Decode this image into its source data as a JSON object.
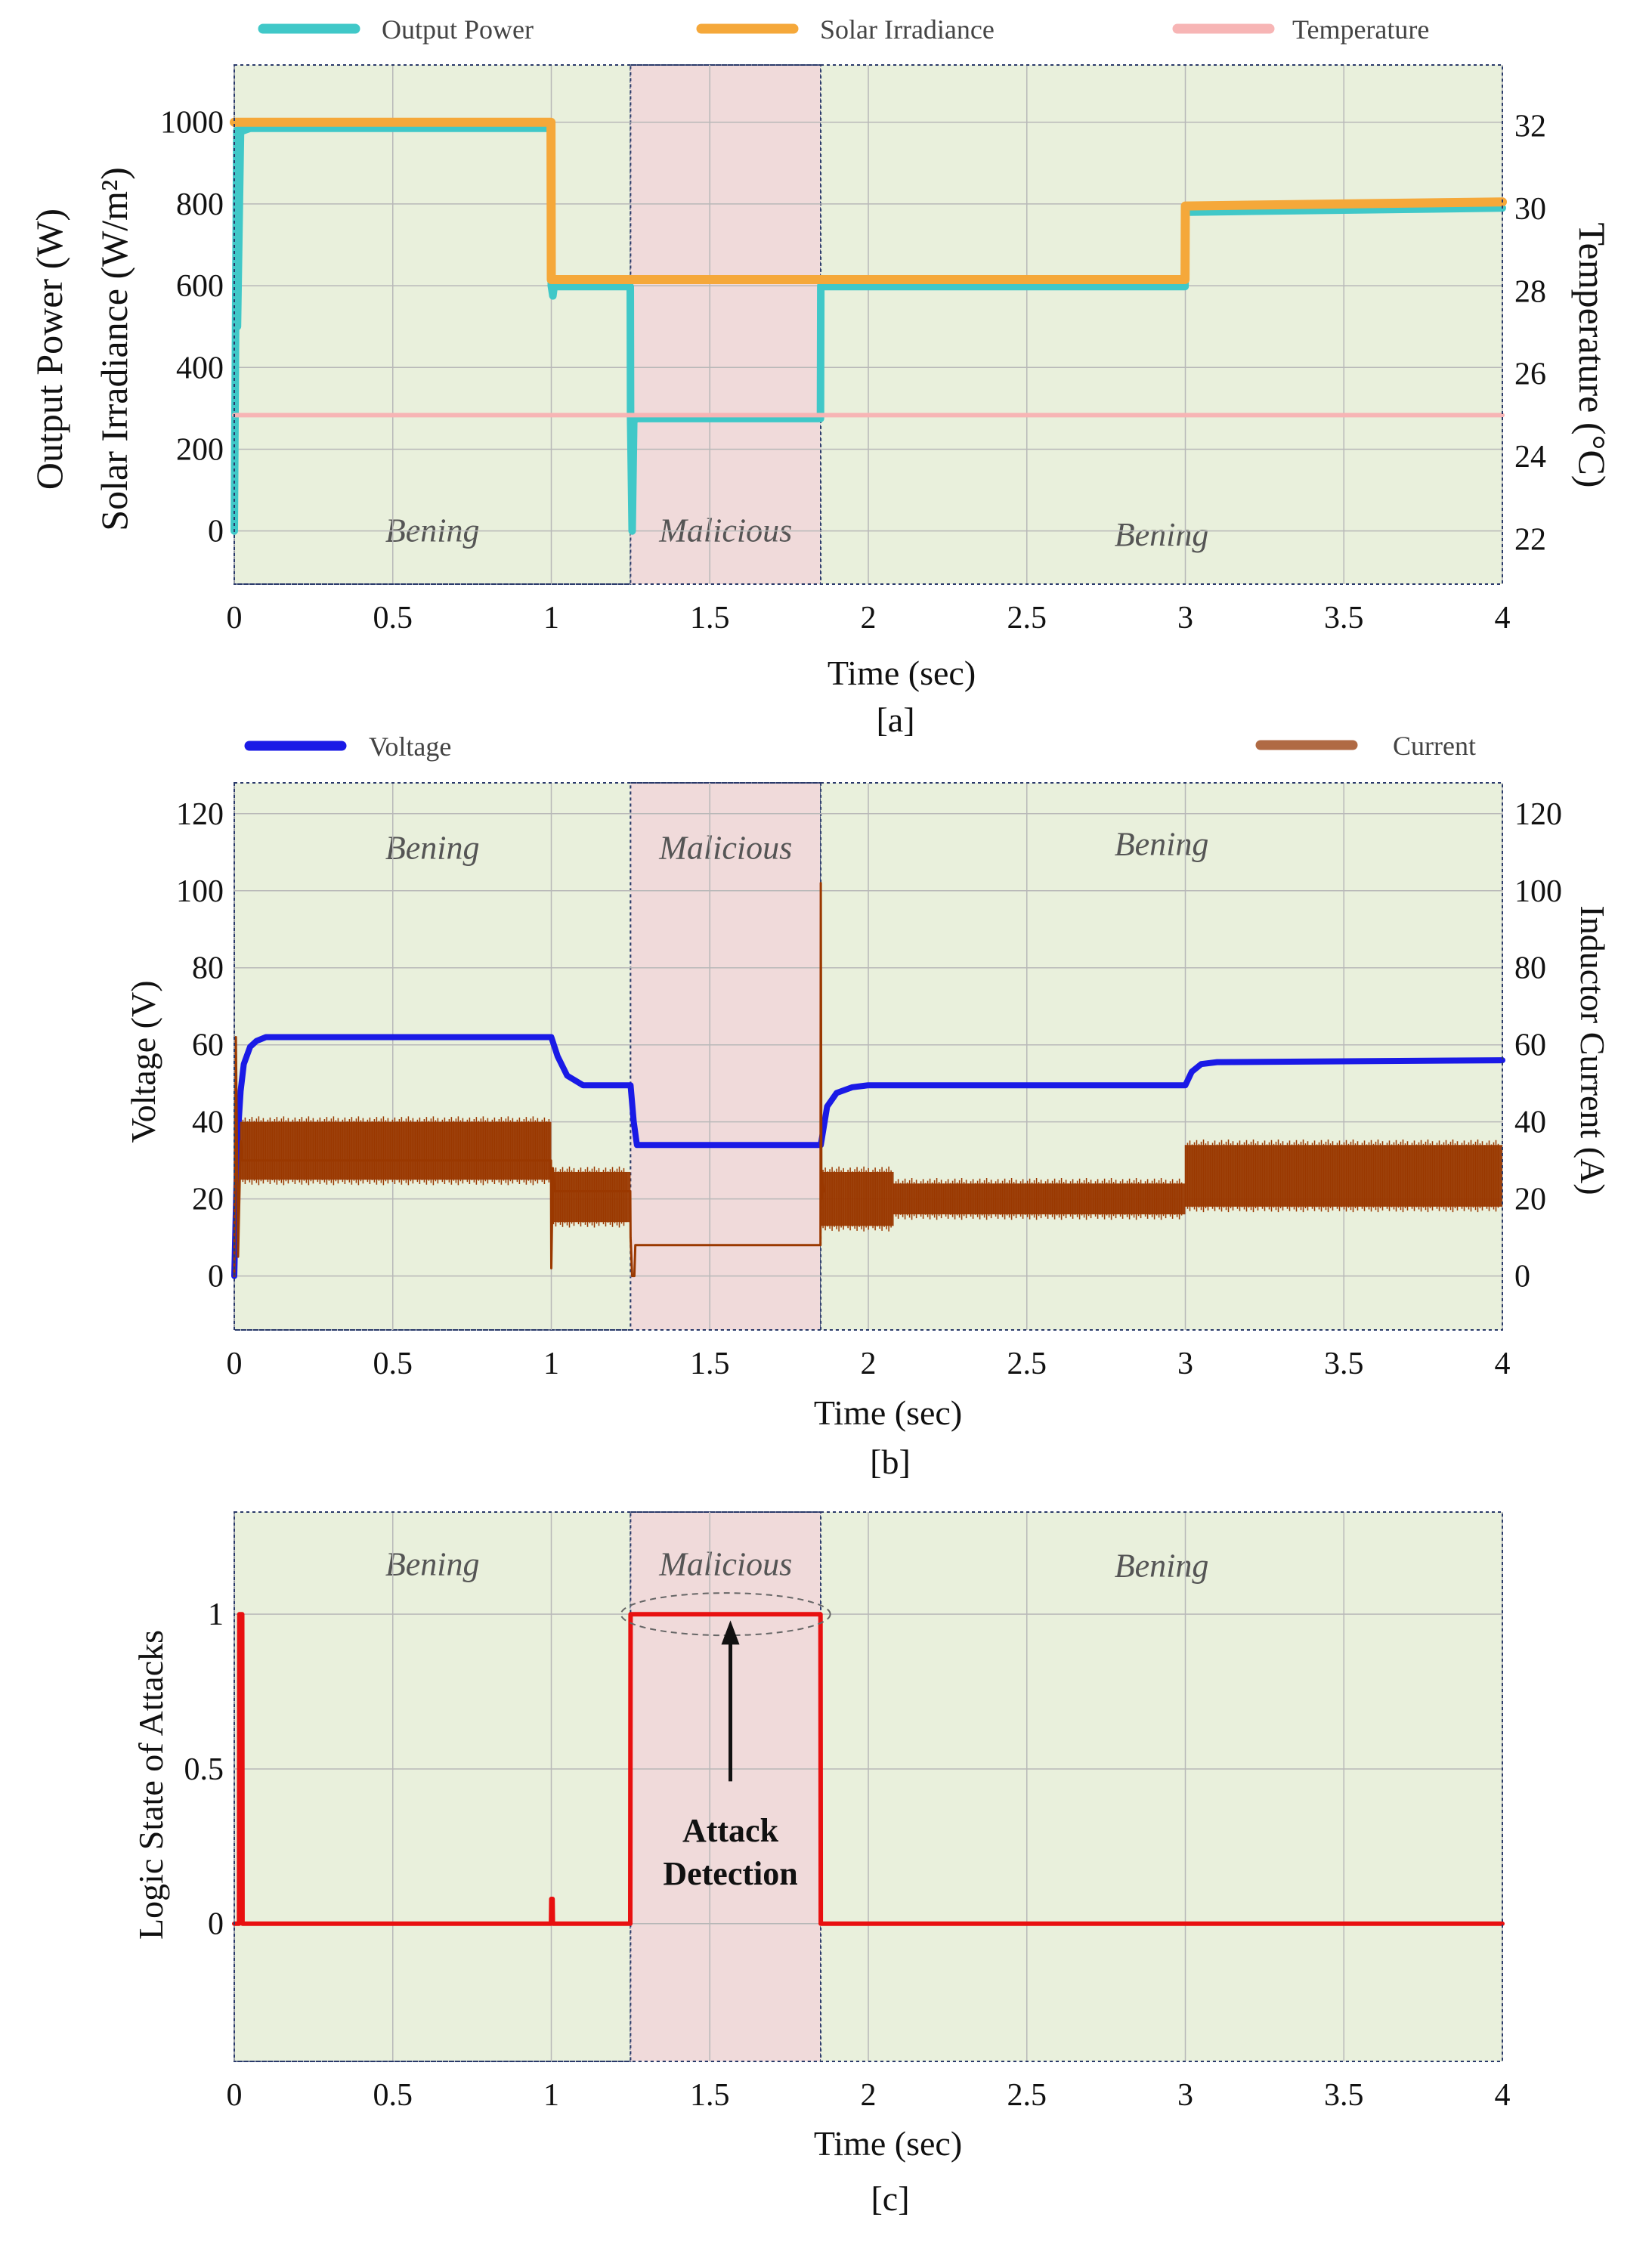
{
  "chart_data": [
    {
      "id": "a",
      "type": "line",
      "caption": "[a]",
      "xlabel": "Time (sec)",
      "ylabel_lines": [
        "Output Power (W)",
        "Solar Irradiance (W/m²)"
      ],
      "y2label": "Temperature (°C)",
      "xlim": [
        0,
        4
      ],
      "ylim": [
        -130,
        1140
      ],
      "y2lim": [
        20.914,
        33.47
      ],
      "xticks": [
        0,
        0.5,
        1,
        1.5,
        2,
        2.5,
        3,
        3.5,
        4
      ],
      "xtick_labels": [
        "0",
        "0.5",
        "1",
        "1.5",
        "2",
        "2.5",
        "3",
        "3.5",
        "4"
      ],
      "yticks": [
        0,
        200,
        400,
        600,
        800,
        1000
      ],
      "ytick_labels": [
        "0",
        "200",
        "400",
        "600",
        "800",
        "1000"
      ],
      "y2ticks": [
        22,
        24,
        26,
        28,
        30,
        32
      ],
      "y2tick_labels": [
        "22",
        "24",
        "26",
        "28",
        "30",
        "32"
      ],
      "grid": true,
      "legend_position": "top",
      "regions": [
        {
          "label": "Bening",
          "x_start": 0,
          "x_end": 1.25,
          "kind": "benign",
          "label_value": 0
        },
        {
          "label": "Malicious",
          "x_start": 1.25,
          "x_end": 1.85,
          "kind": "malicious",
          "label_value": 0
        },
        {
          "label": "Bening",
          "x_start": 1.85,
          "x_end": 4,
          "kind": "benign",
          "label_value": -10
        }
      ],
      "series": [
        {
          "name": "Output Power",
          "color": "#40c8c8",
          "axis": "left",
          "x": [
            0,
            0.008,
            0.01,
            0.02,
            0.03,
            0.05,
            0.999,
            1.0,
            1.005,
            1.01,
            1.02,
            1.249,
            1.25,
            1.255,
            1.26,
            1.27,
            1.849,
            1.85,
            1.86,
            2.999,
            3.0,
            3.01,
            4.0
          ],
          "y": [
            0,
            980,
            500,
            995,
            980,
            985,
            985,
            600,
            575,
            605,
            598,
            598,
            280,
            0,
            270,
            275,
            275,
            600,
            598,
            598,
            780,
            780,
            790
          ]
        },
        {
          "name": "Solar Irradiance",
          "color": "#f5a83a",
          "axis": "left",
          "x": [
            0,
            0.999,
            1.0,
            2.999,
            3.0,
            4.0
          ],
          "y": [
            1000,
            1000,
            615,
            615,
            795,
            805
          ]
        },
        {
          "name": "Temperature",
          "color": "#f7b5b5",
          "axis": "right",
          "x": [
            0,
            4
          ],
          "y": [
            25,
            25
          ]
        }
      ]
    },
    {
      "id": "b",
      "type": "line",
      "caption": "[b]",
      "xlabel": "Time (sec)",
      "ylabel": "Voltage (V)",
      "y2label": "Inductor Current (A)",
      "xlim": [
        0,
        4
      ],
      "ylim": [
        -14,
        128
      ],
      "y2lim": [
        -14,
        128
      ],
      "xticks": [
        0,
        0.5,
        1,
        1.5,
        2,
        2.5,
        3,
        3.5,
        4
      ],
      "xtick_labels": [
        "0",
        "0.5",
        "1",
        "1.5",
        "2",
        "2.5",
        "3",
        "3.5",
        "4"
      ],
      "yticks": [
        0,
        20,
        40,
        60,
        80,
        100,
        120
      ],
      "ytick_labels": [
        "0",
        "20",
        "40",
        "60",
        "80",
        "100",
        "120"
      ],
      "y2ticks": [
        0,
        20,
        40,
        60,
        80,
        100,
        120
      ],
      "y2tick_labels": [
        "0",
        "20",
        "40",
        "60",
        "80",
        "100",
        "120"
      ],
      "grid": true,
      "legend_position": "top",
      "regions": [
        {
          "label": "Bening",
          "x_start": 0,
          "x_end": 1.25,
          "kind": "benign",
          "label_value": 111
        },
        {
          "label": "Malicious",
          "x_start": 1.25,
          "x_end": 1.85,
          "kind": "malicious",
          "label_value": 111
        },
        {
          "label": "Bening",
          "x_start": 1.85,
          "x_end": 4,
          "kind": "benign",
          "label_value": 112
        }
      ],
      "series": [
        {
          "name": "Voltage",
          "color": "#1a1ae6",
          "axis": "left",
          "x": [
            0,
            0.01,
            0.02,
            0.03,
            0.05,
            0.07,
            0.1,
            0.15,
            1.0,
            1.02,
            1.05,
            1.1,
            1.25,
            1.26,
            1.27,
            1.84,
            1.85,
            1.87,
            1.9,
            1.95,
            2.0,
            3.0,
            3.02,
            3.05,
            3.1,
            4.0
          ],
          "y": [
            0,
            35,
            48,
            55,
            59.5,
            61,
            62,
            62,
            62,
            57,
            52,
            49.5,
            49.5,
            40,
            34,
            34,
            34,
            44,
            47.5,
            49,
            49.5,
            49.5,
            53,
            55,
            55.5,
            56
          ]
        },
        {
          "name": "Current",
          "color": "#9a3800",
          "axis": "right",
          "style": "band",
          "envelope": [
            {
              "x_start": 0.02,
              "x_end": 1.0,
              "low": 25,
              "high": 40
            },
            {
              "x_start": 1.0,
              "x_end": 1.25,
              "low": 14,
              "high": 27
            },
            {
              "x_start": 1.85,
              "x_end": 2.08,
              "low": 13,
              "high": 27
            },
            {
              "x_start": 2.08,
              "x_end": 3.0,
              "low": 16,
              "high": 24
            },
            {
              "x_start": 3.0,
              "x_end": 4.0,
              "low": 18,
              "high": 34
            }
          ],
          "x": [
            0,
            0.005,
            0.012,
            0.02,
            0.025,
            0.999,
            1.0,
            1.005,
            1.01,
            1.249,
            1.25,
            1.255,
            1.262,
            1.265,
            1.849,
            1.85,
            1.852,
            1.856,
            1.86
          ],
          "y": [
            0,
            62,
            5,
            35,
            30,
            30,
            2,
            28,
            22,
            22,
            10,
            0,
            0,
            8,
            8,
            102,
            20,
            24,
            22
          ]
        }
      ]
    },
    {
      "id": "c",
      "type": "line",
      "caption": "[c]",
      "xlabel": "Time (sec)",
      "ylabel": "Logic State of Attacks",
      "xlim": [
        0,
        4
      ],
      "ylim": [
        -0.445,
        1.33
      ],
      "xticks": [
        0,
        0.5,
        1,
        1.5,
        2,
        2.5,
        3,
        3.5,
        4
      ],
      "xtick_labels": [
        "0",
        "0.5",
        "1",
        "1.5",
        "2",
        "2.5",
        "3",
        "3.5",
        "4"
      ],
      "yticks": [
        0,
        0.5,
        1
      ],
      "ytick_labels": [
        "0",
        "0.5",
        "1"
      ],
      "grid": true,
      "regions": [
        {
          "label": "Bening",
          "x_start": 0,
          "x_end": 1.25,
          "kind": "benign",
          "label_value": 1.16
        },
        {
          "label": "Malicious",
          "x_start": 1.25,
          "x_end": 1.85,
          "kind": "malicious",
          "label_value": 1.16
        },
        {
          "label": "Bening",
          "x_start": 1.85,
          "x_end": 4,
          "kind": "benign",
          "label_value": 1.155
        }
      ],
      "annotation": {
        "lines": [
          "Attack",
          "Detection"
        ],
        "arrow_x": 1.565,
        "arrow_from": 0.46,
        "arrow_to": 0.98,
        "ellipse_x": [
          1.22,
          1.88
        ],
        "ellipse_y": 1.0,
        "text_y": [
          0.3,
          0.16
        ]
      },
      "series": [
        {
          "name": "Logic State",
          "color": "#e81010",
          "axis": "left",
          "x": [
            0,
            0.015,
            0.016,
            0.025,
            0.026,
            0.999,
            1.0,
            1.004,
            1.005,
            1.249,
            1.25,
            1.849,
            1.85,
            4.0
          ],
          "y": [
            0,
            0,
            1,
            1,
            0,
            0,
            0.08,
            0.08,
            0,
            0,
            1,
            1,
            0,
            0
          ]
        }
      ]
    }
  ]
}
